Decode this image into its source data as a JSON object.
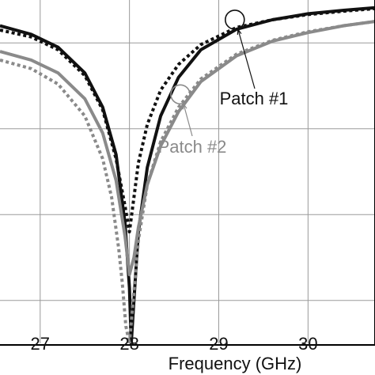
{
  "chart_data": {
    "type": "line",
    "xlabel": "Frequency (GHz)",
    "ylabel": "",
    "title": "",
    "xlim": [
      26.55,
      30.75
    ],
    "ylim": [
      -40,
      0
    ],
    "x_ticks": [
      27,
      28,
      29,
      30
    ],
    "x_tick_labels": [
      "27",
      "28",
      "29",
      "30"
    ],
    "y_gridlines": [
      -5,
      -15,
      -25,
      -35
    ],
    "grid": true,
    "legend": "none",
    "colors": {
      "patch1": "#111111",
      "patch2": "#8a8a8a"
    },
    "series": [
      {
        "name": "Patch #1",
        "group": "patch1",
        "style": "solid",
        "x": [
          26.55,
          26.9,
          27.2,
          27.5,
          27.7,
          27.85,
          27.95,
          28.0,
          28.02,
          28.05,
          28.1,
          28.2,
          28.35,
          28.55,
          28.8,
          29.2,
          29.6,
          30.0,
          30.4,
          30.75
        ],
        "y": [
          -3.0,
          -4.0,
          -5.5,
          -8.5,
          -12.5,
          -18.0,
          -26.0,
          -33.5,
          -40.0,
          -35.0,
          -27.0,
          -19.5,
          -13.5,
          -9.0,
          -5.8,
          -3.4,
          -2.3,
          -1.6,
          -1.2,
          -0.9
        ]
      },
      {
        "name": "Patch #1",
        "group": "patch1",
        "style": "dotted",
        "x": [
          26.55,
          26.9,
          27.2,
          27.5,
          27.7,
          27.85,
          27.95,
          28.0,
          28.05,
          28.1,
          28.2,
          28.35,
          28.55,
          28.8,
          29.2,
          29.6,
          30.0,
          30.4,
          30.75
        ],
        "y": [
          -3.5,
          -4.3,
          -5.8,
          -8.8,
          -12.8,
          -18.5,
          -24.0,
          -27.0,
          -23.0,
          -19.0,
          -14.5,
          -10.5,
          -7.5,
          -5.2,
          -3.2,
          -2.3,
          -1.7,
          -1.3,
          -1.0
        ]
      },
      {
        "name": "Patch #2",
        "group": "patch2",
        "style": "solid",
        "x": [
          26.55,
          26.9,
          27.2,
          27.5,
          27.7,
          27.85,
          27.95,
          28.0,
          28.05,
          28.1,
          28.2,
          28.35,
          28.55,
          28.8,
          29.2,
          29.6,
          30.0,
          30.4,
          30.75
        ],
        "y": [
          -6.0,
          -7.0,
          -8.5,
          -11.5,
          -15.5,
          -21.0,
          -27.5,
          -32.0,
          -30.0,
          -26.5,
          -21.5,
          -17.0,
          -13.0,
          -9.5,
          -6.5,
          -4.8,
          -3.8,
          -3.0,
          -2.5
        ]
      },
      {
        "name": "Patch #2",
        "group": "patch2",
        "style": "dotted",
        "x": [
          26.55,
          26.9,
          27.2,
          27.5,
          27.7,
          27.8,
          27.88,
          27.92,
          27.96,
          28.0,
          28.05,
          28.1,
          28.2,
          28.35,
          28.55,
          28.8,
          29.2,
          29.6,
          30.0,
          30.4,
          30.75
        ],
        "y": [
          -7.0,
          -8.0,
          -9.8,
          -13.5,
          -18.5,
          -23.0,
          -29.0,
          -33.0,
          -38.0,
          -40.0,
          -34.0,
          -28.0,
          -21.5,
          -16.5,
          -12.5,
          -9.2,
          -6.3,
          -4.7,
          -3.7,
          -3.0,
          -2.5
        ]
      }
    ],
    "annotations": [
      {
        "text": "Patch #1",
        "group": "patch1",
        "circle_x": 29.18,
        "circle_y": -2.3
      },
      {
        "text": "Patch #2",
        "group": "patch2",
        "circle_x": 28.57,
        "circle_y": -11.0
      }
    ]
  }
}
